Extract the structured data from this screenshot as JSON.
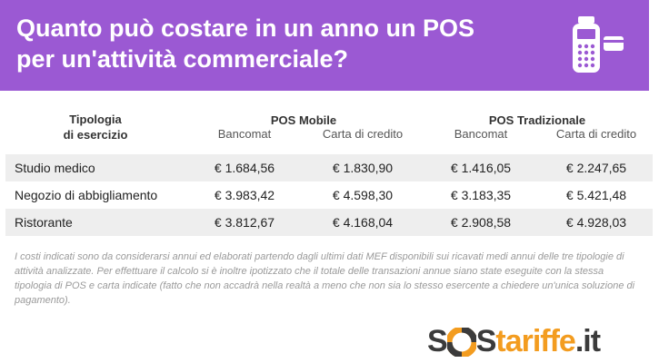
{
  "header": {
    "title_line1": "Quanto può costare in un anno un POS",
    "title_line2": "per un'attività commerciale?",
    "icon": "pos-terminal-icon",
    "bg_color": "#9b59d3"
  },
  "table": {
    "type_header_line1": "Tipologia",
    "type_header_line2": "di esercizio",
    "groups": [
      "POS Mobile",
      "POS Tradizionale"
    ],
    "subheaders": [
      "Bancomat",
      "Carta di credito",
      "Bancomat",
      "Carta di credito"
    ],
    "rows": [
      {
        "name": "Studio medico",
        "values": [
          "€ 1.684,56",
          "€ 1.830,90",
          "€ 1.416,05",
          "€ 2.247,65"
        ]
      },
      {
        "name": "Negozio di abbigliamento",
        "values": [
          "€ 3.983,42",
          "€ 4.598,30",
          "€ 3.183,35",
          "€ 5.421,48"
        ]
      },
      {
        "name": "Ristorante",
        "values": [
          "€ 3.812,67",
          "€ 4.168,04",
          "€ 2.908,58",
          "€ 4.928,03"
        ]
      }
    ]
  },
  "note": "I costi indicati sono da considerarsi annui ed elaborati partendo dagli ultimi dati MEF disponibili sui ricavati medi annui delle tre tipologie di attività analizzate. Per effettuare il calcolo si è inoltre ipotizzato che il totale delle transazioni annue siano state eseguite con la stessa tipologia di POS e carta indicate (fatto che non accadrà nella realtà a meno che non sia lo stesso esercente a chiedere un'unica soluzione di pagamento).",
  "logo": {
    "part1": "S",
    "part2": "S",
    "part3": "tariffe",
    "part4": ".it",
    "icon": "lifebuoy-icon",
    "accent": "#f39c1f"
  }
}
